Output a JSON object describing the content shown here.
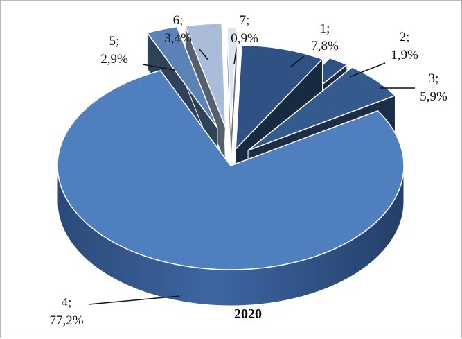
{
  "chart_data": {
    "type": "pie",
    "title": "2020",
    "style": "3d-exploded",
    "slices": [
      {
        "id": "1",
        "value": 7.8,
        "label_line1": "1;",
        "label_line2": "7,8%",
        "color": "#2f5183"
      },
      {
        "id": "2",
        "value": 1.9,
        "label_line1": "2;",
        "label_line2": "1,9%",
        "color": "#2f5183"
      },
      {
        "id": "3",
        "value": 5.9,
        "label_line1": "3;",
        "label_line2": "5,9%",
        "color": "#355a8e"
      },
      {
        "id": "4",
        "value": 77.2,
        "label_line1": "4;",
        "label_line2": "77,2%",
        "color": "#4f7fbf"
      },
      {
        "id": "5",
        "value": 2.9,
        "label_line1": "5;",
        "label_line2": "2,9%",
        "color": "#5c83b8"
      },
      {
        "id": "6",
        "value": 3.4,
        "label_line1": "6;",
        "label_line2": "3,4%",
        "color": "#a9bddb"
      },
      {
        "id": "7",
        "value": 0.9,
        "label_line1": "7;",
        "label_line2": "0,9%",
        "color": "#dde5f1"
      }
    ]
  }
}
